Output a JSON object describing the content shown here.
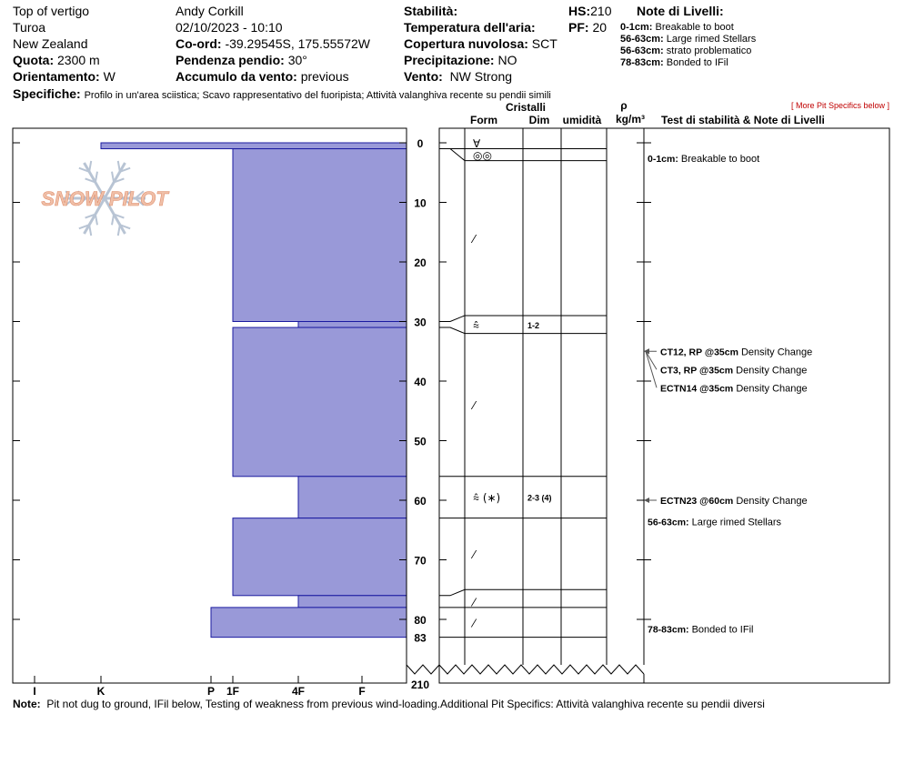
{
  "header": {
    "location": "Top of vertigo",
    "area": "Turoa",
    "country": "New Zealand",
    "elevation_label": "Quota:",
    "elevation": "2300 m",
    "aspect_label": "Orientamento:",
    "aspect": "W",
    "observer": "Andy Corkill",
    "datetime": "02/10/2023 - 10:10",
    "coord_label": "Co-ord:",
    "coord": "-39.29545S, 175.55572W",
    "slope_label": "Pendenza pendio:",
    "slope": "30°",
    "wind_loading_label": "Accumulo da vento:",
    "wind_loading": "previous",
    "stability_label": "Stabilità:",
    "stability": "",
    "air_temp_label": "Temperatura dell'aria:",
    "air_temp": "",
    "sky_label": "Copertura nuvolosa:",
    "sky": "SCT",
    "precip_label": "Precipitazione:",
    "precip": "NO",
    "wind_label": "Vento:",
    "wind": "NW Strong",
    "hs_label": "HS:",
    "hs": "210",
    "pf_label": "PF:",
    "pf": "20",
    "layer_notes_title": "Note di Livelli:",
    "layer_notes": [
      {
        "range": "0-1cm:",
        "text": "Breakable to boot"
      },
      {
        "range": "56-63cm:",
        "text": "Large rimed Stellars"
      },
      {
        "range": "56-63cm:",
        "text": "strato problematico"
      },
      {
        "range": "78-83cm:",
        "text": "Bonded to IFil"
      }
    ],
    "specifics_label": "Specifiche:",
    "specifics": "Profilo in un'area sciistica; Scavo rappresentativo del fuoripista; Attività valanghiva recente su pendii simili"
  },
  "more_link": "[ More Pit Specifics below ]",
  "columns": {
    "crystals": "Cristalli",
    "form": "Form",
    "size": "Dim",
    "moisture": "umidità",
    "rho": "ρ",
    "density_unit": "kg/m³",
    "tests": "Test di stabilità & Note di Livelli"
  },
  "note_label": "Note:",
  "note": "Pit not dug to ground, IFil below, Testing of weakness from previous wind-loading.Additional Pit Specifics: Attività valanghiva recente su pendii diversi",
  "logo_text": "SNOW PILOT",
  "colors": {
    "hardness_fill": "#9999d8",
    "hardness_stroke": "#1a1aa0",
    "arrow": "#555555",
    "logo": "#f0c0a8",
    "flake": "#b8c4d4"
  },
  "chart_data": {
    "type": "snow-profile",
    "depth_unit": "cm",
    "depth_range": [
      0,
      83
    ],
    "total_depth": 210,
    "depth_ticks": [
      0,
      10,
      20,
      30,
      40,
      50,
      60,
      70,
      80,
      83
    ],
    "hardness_scale": [
      "I",
      "K",
      "P",
      "1F",
      "4F",
      "F"
    ],
    "hardness_layers": [
      {
        "top": 0,
        "bottom": 1,
        "hardness": "K"
      },
      {
        "top": 1,
        "bottom": 30,
        "hardness": "1F"
      },
      {
        "top": 30,
        "bottom": 31,
        "hardness": "4F"
      },
      {
        "top": 31,
        "bottom": 56,
        "hardness": "1F"
      },
      {
        "top": 56,
        "bottom": 63,
        "hardness": "4F"
      },
      {
        "top": 63,
        "bottom": 76,
        "hardness": "1F"
      },
      {
        "top": 76,
        "bottom": 78,
        "hardness": "4F"
      },
      {
        "top": 78,
        "bottom": 83,
        "hardness": "P"
      }
    ],
    "layer_boundaries": [
      1,
      3,
      29,
      32,
      56,
      63,
      75,
      78,
      83
    ],
    "crystal_rows": [
      {
        "depth": 0,
        "form": "∀",
        "size": ""
      },
      {
        "depth": 2,
        "form": "◎◎",
        "size": ""
      },
      {
        "depth": 16,
        "form": "⁄",
        "size": ""
      },
      {
        "depth": 30.5,
        "form": "⩯",
        "size": "1-2"
      },
      {
        "depth": 44,
        "form": "⁄",
        "size": ""
      },
      {
        "depth": 59.5,
        "form": "⩯ (∗)",
        "size": "2-3 (4)"
      },
      {
        "depth": 69,
        "form": "⁄",
        "size": ""
      },
      {
        "depth": 77,
        "form": "⁄",
        "size": ""
      },
      {
        "depth": 80.5,
        "form": "⁄",
        "size": ""
      }
    ],
    "annotations": [
      {
        "depth": 2,
        "bold": "0-1cm:",
        "text": "Breakable to boot",
        "arrow": false
      },
      {
        "depth": 35,
        "bold": "CT12, RP @35cm",
        "text": "Density Change",
        "arrow": true
      },
      {
        "depth": 35,
        "bold": "CT3, RP @35cm",
        "text": "Density Change",
        "arrow": true
      },
      {
        "depth": 35,
        "bold": "ECTN14 @35cm",
        "text": "Density Change",
        "arrow": true
      },
      {
        "depth": 60,
        "bold": "ECTN23 @60cm",
        "text": "Density Change",
        "arrow": true
      },
      {
        "depth": 63,
        "bold": "56-63cm:",
        "text": "Large rimed Stellars",
        "arrow": false
      },
      {
        "depth": 81,
        "bold": "78-83cm:",
        "text": "Bonded to IFil",
        "arrow": false
      }
    ]
  }
}
